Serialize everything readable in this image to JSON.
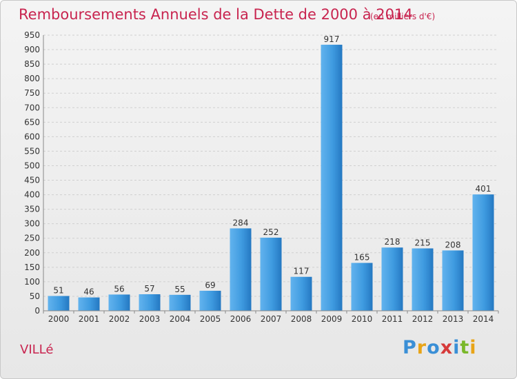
{
  "title": "Remboursements Annuels de la Dette de 2000 à 2014",
  "unit": "(en milliers d'€)",
  "commune": "VILLé",
  "logo": {
    "letters": [
      "P",
      "r",
      "o",
      "x",
      "i",
      "t",
      "i"
    ],
    "colors": [
      "#3a8fd6",
      "#e8a417",
      "#3a8fd6",
      "#d63a3a",
      "#3a8fd6",
      "#7ab82a",
      "#e8a417"
    ]
  },
  "colors": {
    "bar": "#3f9be0",
    "bar_light": "#62b3ee",
    "bar_dark": "#2478c2",
    "title": "#c8244f"
  },
  "chart_data": {
    "type": "bar",
    "title": "Remboursements Annuels de la Dette de 2000 à 2014",
    "xlabel": "",
    "ylabel": "",
    "categories": [
      "2000",
      "2001",
      "2002",
      "2003",
      "2004",
      "2005",
      "2006",
      "2007",
      "2008",
      "2009",
      "2010",
      "2011",
      "2012",
      "2013",
      "2014"
    ],
    "values": [
      51,
      46,
      56,
      57,
      55,
      69,
      284,
      252,
      117,
      917,
      165,
      218,
      215,
      208,
      401
    ],
    "ylim": [
      0,
      950
    ],
    "yticks": [
      0,
      50,
      100,
      150,
      200,
      250,
      300,
      350,
      400,
      450,
      500,
      550,
      600,
      650,
      700,
      750,
      800,
      850,
      900,
      950
    ],
    "grid": true,
    "legend": "none"
  }
}
